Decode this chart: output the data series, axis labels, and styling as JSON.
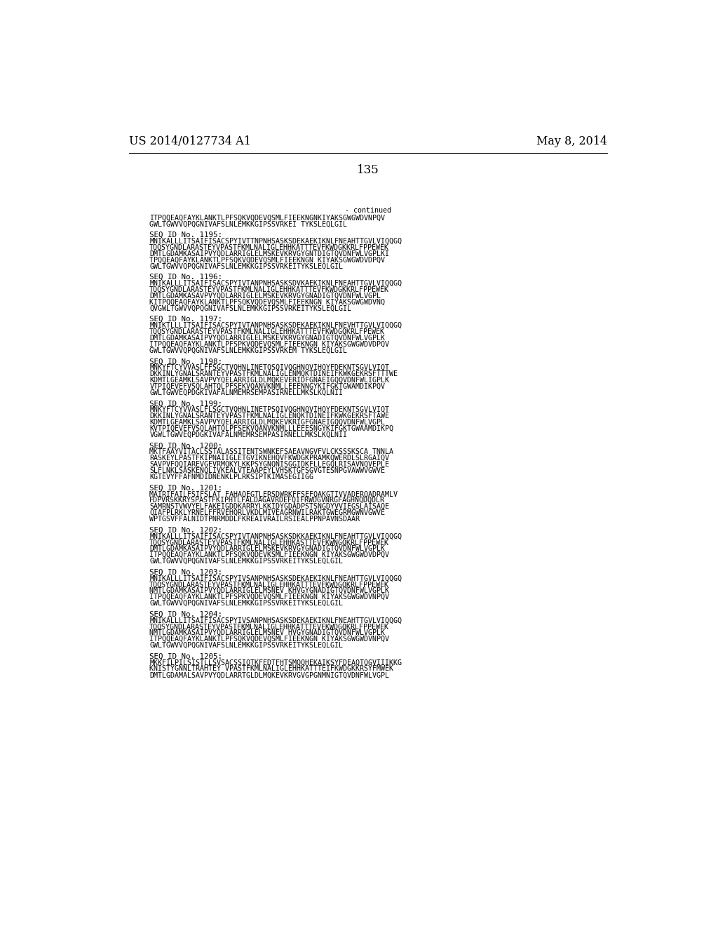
{
  "left_header": "US 2014/0127734 A1",
  "right_header": "May 8, 2014",
  "page_number": "135",
  "background_color": "#ffffff",
  "text_color": "#000000",
  "font_size_header": 11.5,
  "font_size_page": 12,
  "font_size_body": 7.2,
  "font_size_label": 7.8,
  "continued_text": "- continued",
  "sequences": [
    {
      "label": "",
      "lines": [
        "ITPQQEAQFAYKLANKTLPFSQKVQDEVQSMLFIEEKNGNKIYAKSGWGWDVNPQV",
        "GWLTGWVVQPQGNIVAFSLNLEMKKGIPSSVRKEI TYKSLEQLGIL"
      ]
    },
    {
      "label": "SEQ ID No. 1195:",
      "lines": [
        "MNIKALLLITSAIFISACSPYIVTTNPNHSASKSDEKAEKIKNLFNEAHTTGVLVIQQGQ",
        "TQQSYGNDLARASTEYVPASTFKMLNALIGLEHHKATTTEVFKWDGKKRLFPPEWEK",
        "DMTLGDAMKASAIPVYQDLARRIGLELMSKEVKRVGYGNTDIGTQVDNFWLVGPLKI",
        "TPQQEAQFAYKLANKTLPFSQKVQDEVQSMLFIEEKNGN KIYAKSGWGWDVDPQV",
        "GWLTGWVVQPQGNIVAFSLNLEMKKGIPSSVRKEITYKSLEQLGIL"
      ]
    },
    {
      "label": "SEQ ID No. 1196:",
      "lines": [
        "MNIKALLLITSAIFISACSPYIVTANPNHSASKSDVKAEKIKNLFNEAHTTGVLVIQQGQ",
        "TQQSYGNDLARASTEYVPASTFKMLNALIGLEHHKATTTEVFKWDGKKRLFPPEWEK",
        "DMTLGDAMKASAVPVYQDLARRIGLELMSKEVKRVGYGNADIGTQVDNFWLVGPL",
        "KITPQQEAQFAYKLANKTLPFSQKVQDEVQSMLFIEEKNGN KIYAKSGWGWDVNQ",
        "QVGWLTGWVVQPQGNIVAFSLNLEMKKGIPSSVRKEITYKSLEQLGIL"
      ]
    },
    {
      "label": "SEQ ID No. 1197:",
      "lines": [
        "MNIKTLLLITSAIFISACSPYIVTANPNHSASKSDEKAEKIKNLFNEVHTTGVLVIQQGQ",
        "TQQSYGNDLARASTEYVPASTFKMLNALIGLEHHKATTTEVFKWDGQKRLFPEWEK",
        "DMTLGDAMKASAIPVYQDLARRIGLELMSKEVKRVGYGNADIGTQVDNFWLVGPLK",
        "ITPQQEAQFAYKLANKTLPFSPKVQDEVQSMLFIEEKNGN KIYAKSGWGWDVDPQV",
        "GWLTGWVVQPQGNIVAFSLNLEMKKGIPSSVRKEM TYKSLEQLGIL"
      ]
    },
    {
      "label": "SEQ ID No. 1198:",
      "lines": [
        "MNKYFTCYVVASLFFSGCTVQHNLINETQSQIVQGHNQVIHQYFDEKNTSGVLVIQT",
        "DKKINLYGNALSRANTEYVPASTFKMLNALIGLENMQKTDINEIFKWKGEKRSFTTTWE",
        "KDMTLGEAMKLSAVPVYQELARRIGLDLMQKEVERIDFGNAEIGQQVDNFWLIGPLK",
        "VTPIQEVEFVSQLAHTQLPFSEKVQANVKNMLLEEENNGYKIFGKTGWAMDIKPQV",
        "GWLTGWVEQPDGKIVAFALNMEMRSEMPASIRNELLMKSLKQLNII"
      ]
    },
    {
      "label": "SEQ ID No. 1199:",
      "lines": [
        "MNKYFTCYVVASLFLSGCTVQHNLINETPSQIVQGHNQVIHQYFDEKNTSGVLVIQT",
        "DKKINLYGNALSRANTEYVPASTFKMLNALIGLENQKTDINEIFKWKGEKRSFTAWE",
        "KDMTLGEAMKLSAVPVYQELARRIGLDLMQKEVKRIGFGNAEIGQQVDNFWLVGPL",
        "KVTPIQEVEFVSQLAHTQLPFSEKVQANVKNMLLLEEESNGYKIFGKTGWAAMDIKPQ",
        "VGWLTGWVEQPDGKIVAFALNMEMRSEMPASIRNELLMKSLKQLNII"
      ]
    },
    {
      "label": "SEQ ID No. 1200:",
      "lines": [
        "MKTFAAYVITACLSSTALASSITENTSWNKEFSAEAVNGVFVLCKSSSKSCA TNNLA",
        "RASKEYLPASTFKIPNAIIGLETGVIKNEHQVFKWDGKPRAMKQWERDLSLRGAIQV",
        "SAVPVFQQIAREVGEVRMQKYLKKPSYGNQNISGGIDKFLLEGQLRISAVNQVEPLE",
        "SLFLNKLSASKENQLIVKEALVTEAAPEYLVHSKTGFSGVGTESNPGVAWWVGWVE",
        "KGTEVYFFAFNMDIDNENKLPLRKSIPTKIMASEGIIGG"
      ]
    },
    {
      "label": "SEQ ID No. 1201:",
      "lines": [
        "MAIRIFAILFSIFSLAT FAHAQEGTLERSDWRKFFSEFQAKGTIVVADERQADRAMLV",
        "FDPVRSKKRYSPASTFKIPHTLFALDAGAVRDEFQIFRWDGVNRGFAGHNQDQDLR",
        "SAMRNSTVWVYELFAKEIGDDKARRYLKKIDYGDADPSTSNGDYVVIEGSLAISAQE",
        "QIAFPLRKLYRNELFFRVEHQRLVKDLMIVEAGRNWILRAKTGWEGRMGWNVGWVE",
        "WPTGSVFFALNIDTPNRMDDLFKREAIVRAILRSIEALPPNPAVNSDAAR"
      ]
    },
    {
      "label": "SEQ ID No. 1202:",
      "lines": [
        "MNIKALLLITSAIFISACSPYIVTANPNHSASKSDKKAEKIKNLFNEAHTTGVLVIQQGQ",
        "TQQSYGNDLARASTEYVPASTFKMLNALIGLEHHKASTTEVFKWNGQKRLFPPEWEK",
        "DMTLGDAMKASAIPVYQDLARRIGLELMSKEVKRVGYGNADIGTQVDNFWLVGPLK",
        "ITPQQEAQFAYKLANKTLPFSQKVQDEVKSMLFIEEKNGN KIYAKSGWGWDVDPQV",
        "GWLTGWVVQPQGNIVAFSLNLEMKKGIPSSVRKEITYKSLEQLGIL"
      ]
    },
    {
      "label": "SEQ ID No. 1203:",
      "lines": [
        "MNIKALLLITSAIFISACSPYIVSANPNHSASKSDEKAEKIKNLFNEAHTTGVLVIQQGQ",
        "TQQSYGNDLARASTEYVPASTFKMLNALIGLEHHKATTTEVFKWDGQKRLFPPEWEK",
        "NMTLGDAMKASAIPVYQDLARRIGLELMSNEV KHVGYGNADIGTQVDNFWLVGPLK",
        "ITPQQEAQFAYKLANKTLPFSPKVQDEVQSMLFIEEKNGN KIYAKSGWGWDVNPQV",
        "GWLTGWVVQPQGNIVAFSLNLEMKKGIPSSVRKEITYKSLEQLGIL"
      ]
    },
    {
      "label": "SEQ ID No. 1204:",
      "lines": [
        "MNIKALLLITSAIFISACSPYIVSANPNHSASKSDEKAEKIKNLFNEAHTTGVLVIQQGQ",
        "TQQSYGNDLARASTEYVPASTFKMLNALIGLEHHKATTTEVFKWDGQKRLFPPEWEK",
        "NMTLGDAMKASAIPVYQDLARRIGLELMSNEV HVGYGNADIGTQVDNFWLVGPLK",
        "ITPQQEAQFAYKLANKTLPFSQKVQDEVQSMLFIEEKNGN KIYAKSGWGWDVNPQV",
        "GWLTGWVVQPQGNIVAFSLNLEMKKGIPSSVRKEITYKSLEQLGIL"
      ]
    },
    {
      "label": "SEQ ID No. 1205:",
      "lines": [
        "MKKFILPILSISTLLSVSACSSIQTKFEDTFHTSMQQHEKAIKSYFDEAQTQGVIIIKKG",
        "KNISTYGNNLTRAHTEY VPASTFKMLNALIGLEHHKATTTEIFKWDGKKRSYFMWEK",
        "DMTLGDAMALSAVPVYQDLARRTGLDLMQKEVKRVGVGPGNMNIGTQVDNFWLVGPL"
      ]
    }
  ]
}
